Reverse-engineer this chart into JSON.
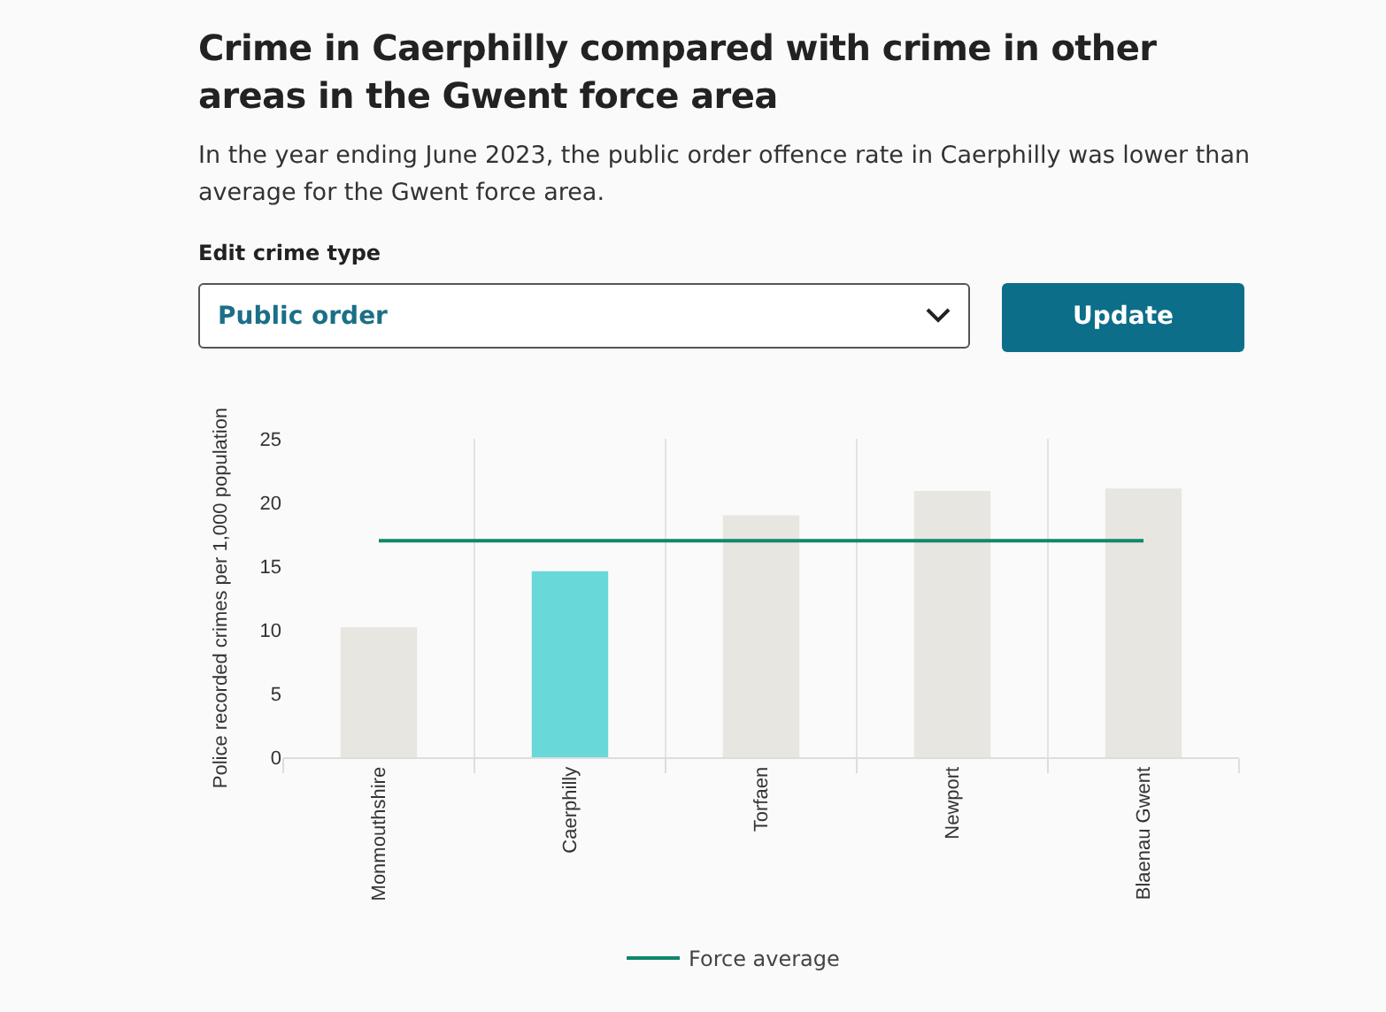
{
  "chart_data": {
    "type": "bar",
    "title": "Crime in Caerphilly compared with crime in other areas in the Gwent force area",
    "subtitle": "In the year ending June 2023, the public order offence rate in Caerphilly was lower than average for the Gwent force area.",
    "annotations": [
      "Edit crime type",
      "Public order",
      "Update"
    ],
    "ylabel": "Police recorded crimes per 1,000 population",
    "categories": [
      "Monmouthshire",
      "Caerphilly",
      "Torfaen",
      "Newport",
      "Blaenau Gwent"
    ],
    "values": [
      10.2,
      14.6,
      19.0,
      20.9,
      21.1
    ],
    "colors": [
      "#e8e6e1",
      "#68d8d8",
      "#e8e6e1",
      "#e8e6e1",
      "#e8e6e1"
    ],
    "ylim": [
      0,
      25
    ],
    "yticks": [
      0,
      5,
      10,
      15,
      20,
      25
    ],
    "grid": "x",
    "ref_lines": [
      {
        "axis": "y",
        "value": 17.0,
        "label": "Force average",
        "color": "#10876a"
      }
    ],
    "legend": "bottom"
  }
}
